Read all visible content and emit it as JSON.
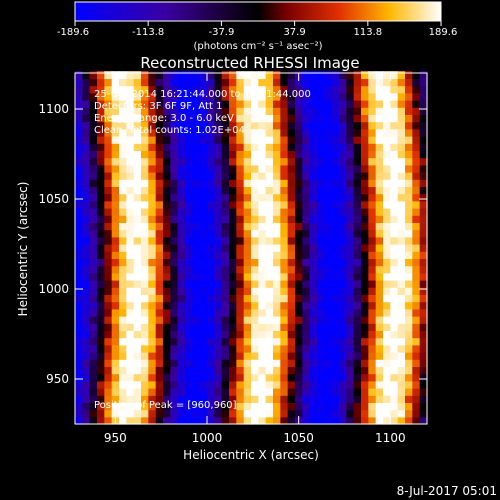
{
  "chart_data": {
    "type": "heatmap",
    "title": "Reconstructed RHESSI Image",
    "xlabel": "Heliocentric X (arcsec)",
    "ylabel": "Heliocentric Y (arcsec)",
    "xlim": [
      928,
      1120
    ],
    "ylim": [
      925,
      1120
    ],
    "x_ticks": [
      950,
      1000,
      1050,
      1100
    ],
    "y_ticks": [
      950,
      1000,
      1050,
      1100
    ],
    "x_tick_labels": [
      "950",
      "1000",
      "1050",
      "1100"
    ],
    "y_tick_labels": [
      "950",
      "1000",
      "1050",
      "1100"
    ],
    "colorbar": {
      "min": -189.6,
      "max": 189.6,
      "ticks": [
        -189.6,
        -113.8,
        -37.9,
        37.9,
        113.8,
        189.6
      ],
      "tick_labels": [
        "-189.6",
        "-113.8",
        "-37.9",
        "37.9",
        "113.8",
        "189.6"
      ],
      "unit": "(photons cm⁻² s⁻¹ asec⁻²)"
    },
    "annotations": [
      "25-Oct-2014 16:21:44.000 to 16:31:44.000",
      "Detectors: 3F 6F 9F, Att 1",
      "Energy Range: 3.0 - 6.0 keV",
      "Clean. Total counts: 1.02E+04"
    ],
    "peak_label": "Position of Peak = [960,960]",
    "peak_x": 960,
    "peak_y": 960,
    "stripe_centers_x": [
      956,
      1027,
      1098
    ],
    "stripe_period_arcsec": 71,
    "stripe_tilt_arcsec": 6,
    "grid": false
  },
  "footer": {
    "timestamp": "8-Jul-2017 05:01"
  }
}
